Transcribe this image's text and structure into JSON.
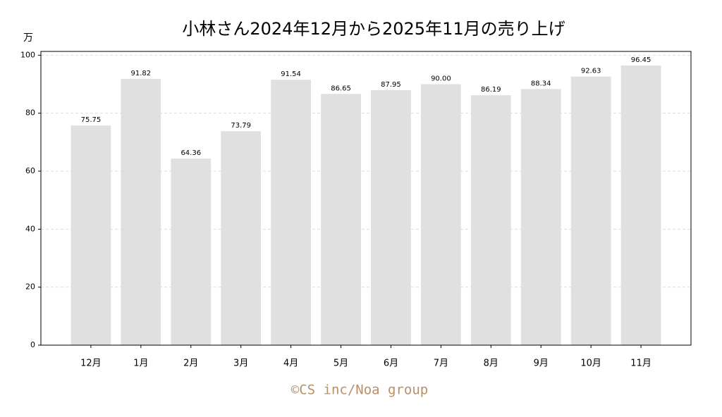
{
  "chart_data": {
    "type": "bar",
    "title": "小林さん2024年12月から2025年11月の売り上げ",
    "y_label": "万",
    "footer": "©CS inc/Noa group",
    "categories": [
      "12月",
      "1月",
      "2月",
      "3月",
      "4月",
      "5月",
      "6月",
      "7月",
      "8月",
      "9月",
      "10月",
      "11月"
    ],
    "values": [
      75.75,
      91.82,
      64.36,
      73.79,
      91.54,
      86.65,
      87.95,
      90.0,
      86.19,
      88.34,
      92.63,
      96.45
    ],
    "value_labels": [
      "75.75",
      "91.82",
      "64.36",
      "73.79",
      "91.54",
      "86.65",
      "87.95",
      "90.00",
      "86.19",
      "88.34",
      "92.63",
      "96.45"
    ],
    "color": "#e0e0e0",
    "ylim": [
      0,
      101.3
    ],
    "yticks": [
      0,
      20,
      40,
      60,
      80,
      100
    ],
    "grid": true
  }
}
